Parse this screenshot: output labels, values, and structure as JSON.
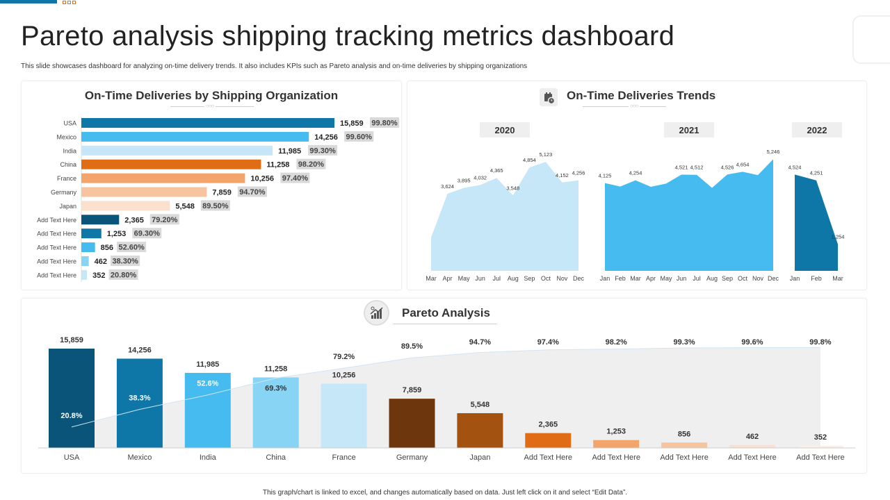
{
  "header": {
    "title": "Pareto analysis shipping tracking metrics dashboard",
    "subtitle": "This slide showcases dashboard for analyzing on-time delivery trends. It also includes KPIs  such as Pareto analysis and on-time deliveries by shipping organizations"
  },
  "footer": "This graph/chart is linked to excel, and changes automatically based on data. Just left click on it and select “Edit Data”.",
  "icons": {
    "trends": "calendar-clock-icon",
    "pareto": "growth-chart-icon"
  },
  "chart_data": [
    {
      "type": "bar",
      "orientation": "horizontal",
      "title": "On-Time Deliveries by Shipping Organization",
      "categories": [
        "USA",
        "Mexico",
        "India",
        "China",
        "France",
        "Germany",
        "Japan",
        "Add Text Here",
        "Add Text Here",
        "Add Text Here",
        "Add Text Here",
        "Add Text Here"
      ],
      "values": [
        15859,
        14256,
        11985,
        11258,
        10256,
        7859,
        5548,
        2365,
        1253,
        856,
        462,
        352
      ],
      "value_labels": [
        "15,859",
        "14,256",
        "11,985",
        "11,258",
        "10,256",
        "7,859",
        "5,548",
        "2,365",
        "1,253",
        "856",
        "462",
        "352"
      ],
      "percent_labels": [
        "99.80%",
        "99.60%",
        "99.30%",
        "98.20%",
        "97.40%",
        "94.70%",
        "89.50%",
        "79.20%",
        "69.30%",
        "52.60%",
        "38.30%",
        "20.80%"
      ],
      "colors": [
        "#0E77A8",
        "#45BBEF",
        "#C5E7F8",
        "#E06C16",
        "#F2A46A",
        "#F6C49E",
        "#FBE0CE",
        "#0B5479",
        "#0E77A8",
        "#45BBEF",
        "#88D4F5",
        "#C5E7F8"
      ]
    },
    {
      "type": "area",
      "title": "On-Time Deliveries Trends",
      "panels": [
        {
          "year": "2020",
          "color": "#C5E7F8",
          "x": [
            "Mar",
            "Apr",
            "May",
            "Jun",
            "Jul",
            "Aug",
            "Sep",
            "Oct",
            "Nov",
            "Dec"
          ],
          "values": [
            1570,
            3624,
            3895,
            4032,
            4365,
            3548,
            4854,
            5123,
            4152,
            4256
          ],
          "labels": [
            "",
            "3,624",
            "3,895",
            "4,032",
            "4,365",
            "3,548",
            "4,854",
            "5,123",
            "4,152",
            "4,256"
          ]
        },
        {
          "year": "2021",
          "color": "#45BBEF",
          "x": [
            "Jan",
            "Feb",
            "Mar",
            "Apr",
            "May",
            "Jun",
            "Jul",
            "Aug",
            "Sep",
            "Oct",
            "Nov",
            "Dec"
          ],
          "values": [
            4125,
            3960,
            4254,
            3950,
            4100,
            4521,
            4512,
            3900,
            4526,
            4654,
            4500,
            5246
          ],
          "labels": [
            "4,125",
            "",
            "4,254",
            "",
            "",
            "4,521",
            "4,512",
            "",
            "4,526",
            "4,654",
            "",
            "5,246"
          ]
        },
        {
          "year": "2022",
          "color": "#0E77A8",
          "x": [
            "Jan",
            "Feb",
            "Mar"
          ],
          "values": [
            4524,
            4251,
            1254
          ],
          "labels": [
            "4,524",
            "4,251",
            "1,254"
          ]
        }
      ]
    },
    {
      "type": "bar",
      "title": "Pareto Analysis",
      "categories": [
        "USA",
        "Mexico",
        "India",
        "China",
        "France",
        "Germany",
        "Japan",
        "Add Text Here",
        "Add Text Here",
        "Add Text Here",
        "Add Text Here",
        "Add Text Here"
      ],
      "values": [
        15859,
        14256,
        11985,
        11258,
        10256,
        7859,
        5548,
        2365,
        1253,
        856,
        462,
        352
      ],
      "value_labels": [
        "15,859",
        "14,256",
        "11,985",
        "11,258",
        "10,256",
        "7,859",
        "5,548",
        "2,365",
        "1,253",
        "856",
        "462",
        "352"
      ],
      "cumulative_percent": [
        20.8,
        38.3,
        52.6,
        69.3,
        79.2,
        89.5,
        94.7,
        97.4,
        98.2,
        99.3,
        99.6,
        99.8
      ],
      "cumulative_labels": [
        "20.8%",
        "38.3%",
        "52.6%",
        "69.3%",
        "79.2%",
        "89.5%",
        "94.7%",
        "97.4%",
        "98.2%",
        "99.3%",
        "99.6%",
        "99.8%"
      ],
      "colors": [
        "#0B5479",
        "#0E77A8",
        "#45BBEF",
        "#88D4F5",
        "#C5E7F8",
        "#6E360C",
        "#A3520F",
        "#E06C16",
        "#F2A46A",
        "#F6C49E",
        "#FBE0CE",
        "#FDEFE6"
      ]
    }
  ]
}
